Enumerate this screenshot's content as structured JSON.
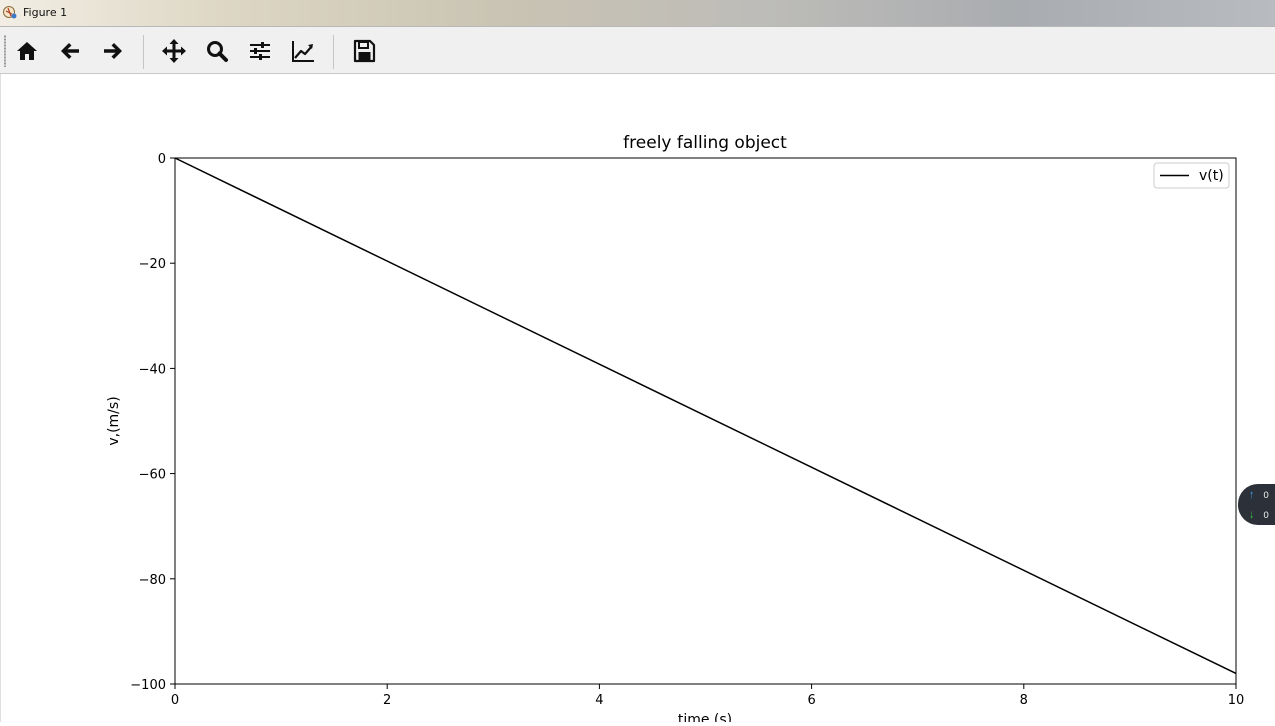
{
  "window": {
    "title": "Figure 1"
  },
  "toolbar": {
    "buttons": [
      {
        "name": "home-button",
        "icon": "home-icon",
        "tooltip": "Home"
      },
      {
        "name": "back-button",
        "icon": "arrow-left-icon",
        "tooltip": "Back"
      },
      {
        "name": "forward-button",
        "icon": "arrow-right-icon",
        "tooltip": "Forward"
      },
      {
        "name": "pan-button",
        "icon": "move-icon",
        "tooltip": "Pan"
      },
      {
        "name": "zoom-button",
        "icon": "magnifier-icon",
        "tooltip": "Zoom"
      },
      {
        "name": "subplots-button",
        "icon": "sliders-icon",
        "tooltip": "Subplots"
      },
      {
        "name": "edit-curves-button",
        "icon": "line-chart-icon",
        "tooltip": "Customize"
      },
      {
        "name": "save-button",
        "icon": "floppy-disk-icon",
        "tooltip": "Save"
      }
    ]
  },
  "side_widget": {
    "up_value": "0",
    "down_value": "0"
  },
  "chart_data": {
    "type": "line",
    "title": "freely falling object",
    "xlabel": "time (s)",
    "ylabel": "v,(m/s)",
    "xlim": [
      0,
      10
    ],
    "ylim": [
      -100,
      0
    ],
    "xticks": [
      0,
      2,
      4,
      6,
      8,
      10
    ],
    "yticks": [
      0,
      -20,
      -40,
      -60,
      -80,
      -100
    ],
    "xtick_labels": [
      "0",
      "2",
      "4",
      "6",
      "8",
      "10"
    ],
    "ytick_labels": [
      "0",
      "−20",
      "−40",
      "−60",
      "−80",
      "−100"
    ],
    "grid": false,
    "legend": {
      "placement": "top-right"
    },
    "series": [
      {
        "name": "v(t)",
        "color": "#000000",
        "x": [
          0,
          10
        ],
        "y": [
          0,
          -98
        ]
      }
    ]
  }
}
